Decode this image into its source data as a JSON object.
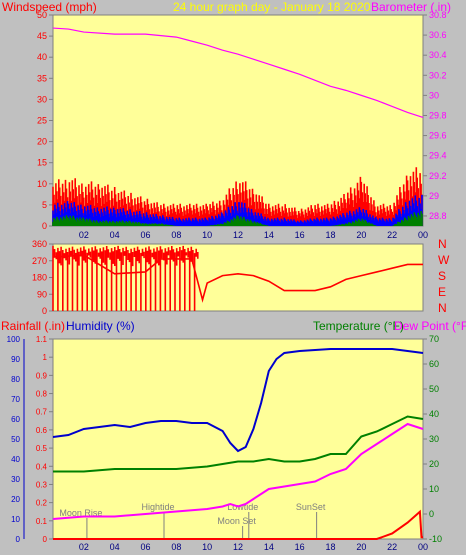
{
  "chart_data": [
    {
      "type": "line",
      "title": "24 hour graph day - January 18 2020",
      "left_axis_label": "Windspeed (mph)",
      "right_axis_label": "Barometer (.in)",
      "x_ticks": [
        "02",
        "04",
        "06",
        "08",
        "10",
        "12",
        "14",
        "16",
        "18",
        "20",
        "22",
        "00"
      ],
      "left_ticks": [
        "0",
        "5",
        "10",
        "15",
        "20",
        "25",
        "30",
        "35",
        "40",
        "45",
        "50"
      ],
      "left_ylim": [
        0,
        50
      ],
      "right_ticks": [
        "28.8",
        "29",
        "29.2",
        "29.4",
        "29.6",
        "29.8",
        "30",
        "30.2",
        "30.4",
        "30.6",
        "30.8"
      ],
      "right_ylim": [
        28.7,
        30.8
      ],
      "grid": false,
      "colors": {
        "gust": "#ff0000",
        "average": "#0000ff",
        "minimum": "#008000",
        "barometer": "#ff00ff",
        "left_axis_text": "#ff0000",
        "right_axis_text": "#ff00ff",
        "title_text": "#ffff00"
      },
      "series": [
        {
          "axis": "right",
          "color": "#ff00ff",
          "x": [
            0,
            1,
            2,
            4,
            6,
            8,
            9,
            10,
            11,
            12,
            13,
            14,
            15,
            16,
            17,
            18,
            19,
            20,
            21,
            22,
            23,
            24
          ],
          "values": [
            30.67,
            30.66,
            30.63,
            30.61,
            30.61,
            30.58,
            30.54,
            30.5,
            30.45,
            30.41,
            30.36,
            30.31,
            30.26,
            30.21,
            30.15,
            30.09,
            30.05,
            30.0,
            29.95,
            29.89,
            29.83,
            29.78
          ]
        },
        {
          "axis": "left",
          "color": "#ff0000",
          "x": [
            0,
            1,
            2,
            3,
            4,
            5,
            6,
            7,
            8,
            9,
            10,
            11,
            12,
            13,
            14,
            15,
            16,
            17,
            18,
            19,
            20,
            21,
            22,
            23,
            24
          ],
          "values": [
            8,
            9,
            8,
            8,
            7,
            6,
            5,
            4,
            4,
            4,
            4,
            5,
            9,
            7,
            4,
            4,
            3,
            4,
            4,
            6,
            9,
            4,
            4,
            10,
            11
          ]
        },
        {
          "axis": "left",
          "color": "#0000ff",
          "x": [
            0,
            1,
            2,
            3,
            4,
            5,
            6,
            7,
            8,
            9,
            10,
            11,
            12,
            13,
            14,
            15,
            16,
            17,
            18,
            19,
            20,
            21,
            22,
            23,
            24
          ],
          "values": [
            4,
            4.5,
            4,
            3.5,
            3.5,
            3,
            2.5,
            2,
            1.5,
            1.5,
            1.5,
            2.5,
            5,
            3,
            1.5,
            1.5,
            1,
            1.5,
            1.5,
            2.5,
            3.5,
            1.5,
            1.5,
            5,
            6
          ]
        },
        {
          "axis": "left",
          "color": "#008000",
          "x": [
            0,
            1,
            2,
            3,
            4,
            5,
            6,
            7,
            8,
            9,
            10,
            11,
            12,
            13,
            14,
            15,
            16,
            17,
            18,
            19,
            20,
            21,
            22,
            23,
            24
          ],
          "values": [
            1.5,
            2,
            1.5,
            1,
            1,
            1,
            0.5,
            0.5,
            0,
            0,
            0,
            0.5,
            2,
            1,
            0,
            0,
            0,
            0,
            0,
            0.5,
            1.5,
            0,
            0,
            2,
            3
          ]
        }
      ]
    },
    {
      "type": "line",
      "title": "",
      "right_ticks": [
        "N",
        "W",
        "S",
        "E",
        "N"
      ],
      "left_ticks": [
        "0",
        "90",
        "180",
        "270",
        "360"
      ],
      "ylim": [
        0,
        360
      ],
      "x_ticks": [],
      "colors": {
        "direction": "#ff0000",
        "label_text": "#ff0000"
      },
      "series": [
        {
          "color": "#ff0000",
          "x": [
            0,
            2,
            4,
            6,
            7,
            8,
            9,
            9.7,
            10,
            11,
            12,
            13,
            14,
            15,
            16,
            17,
            18,
            19,
            20,
            21,
            22,
            23,
            24
          ],
          "values": [
            290,
            300,
            200,
            210,
            280,
            280,
            280,
            60,
            150,
            190,
            200,
            190,
            160,
            110,
            110,
            110,
            130,
            170,
            190,
            210,
            230,
            250,
            250
          ]
        }
      ]
    },
    {
      "type": "line",
      "left_axis_label_1": "Rainfall (.in)",
      "left_axis_label_2": "Humidity (%)",
      "right_axis_label_1": "Temperature (°F)",
      "right_axis_label_2": "Dew Point (°F)",
      "x_ticks": [
        "02",
        "04",
        "06",
        "08",
        "10",
        "12",
        "14",
        "16",
        "18",
        "20",
        "22",
        "00"
      ],
      "humidity_ticks": [
        "0",
        "10",
        "20",
        "30",
        "40",
        "50",
        "60",
        "70",
        "80",
        "90",
        "100"
      ],
      "humidity_ylim": [
        0,
        100
      ],
      "rainfall_ticks": [
        "0",
        "0.1",
        "0.2",
        "0.3",
        "0.4",
        "0.5",
        "0.6",
        "0.7",
        "0.8",
        "0.9",
        "1",
        "1.1"
      ],
      "rainfall_ylim": [
        0,
        1.1
      ],
      "temperature_ticks": [
        "-10",
        "0",
        "10",
        "20",
        "30",
        "40",
        "50",
        "60",
        "70"
      ],
      "temperature_ylim": [
        -10,
        70
      ],
      "colors": {
        "humidity": "#0000cd",
        "temperature": "#008000",
        "dew_point": "#ff00ff",
        "rainfall": "#ff0000",
        "rainfall_axis": "#ff0000",
        "humidity_axis": "#0000cd",
        "temperature_axis": "#008000",
        "dew_point_axis": "#ff00ff",
        "events": "#808080"
      },
      "series": [
        {
          "axis": "humidity",
          "color": "#0000cd",
          "x": [
            0,
            1,
            2,
            3,
            4,
            5,
            6,
            7,
            8,
            9,
            10,
            11,
            11.5,
            12,
            12.5,
            13,
            13.5,
            14,
            14.5,
            15,
            16,
            18,
            20,
            22,
            23,
            24
          ],
          "values": [
            51,
            52,
            55,
            56,
            57,
            56,
            58,
            59,
            59,
            58,
            58,
            54,
            48,
            44,
            46,
            55,
            68,
            84,
            90,
            93,
            94,
            95,
            95,
            95,
            94,
            93
          ]
        },
        {
          "axis": "temperature",
          "color": "#008000",
          "x": [
            0,
            2,
            4,
            6,
            8,
            10,
            11,
            12,
            13,
            14,
            15,
            16,
            17,
            18,
            19,
            20,
            21,
            22,
            23,
            24
          ],
          "values": [
            17,
            17,
            18,
            18,
            18,
            19,
            20,
            21,
            21,
            22,
            21,
            21,
            22,
            24,
            24,
            31,
            33,
            36,
            39,
            38
          ]
        },
        {
          "axis": "temperature",
          "color": "#ff00ff",
          "x": [
            0,
            2,
            4,
            6,
            8,
            10,
            11,
            11.5,
            12,
            12.5,
            13,
            14,
            15,
            16,
            17,
            18,
            19,
            20,
            21,
            22,
            23,
            24
          ],
          "values": [
            -2,
            -1,
            -1,
            0,
            1,
            2,
            3,
            4,
            3,
            4,
            6,
            10,
            11,
            12,
            13,
            16,
            18,
            24,
            28,
            32,
            36,
            34
          ]
        },
        {
          "axis": "rainfall",
          "color": "#ff0000",
          "x": [
            0,
            21,
            22,
            23,
            23.8,
            23.9,
            24
          ],
          "values": [
            0,
            0,
            0.03,
            0.09,
            0.15,
            0.01,
            0.01
          ]
        }
      ],
      "events": [
        {
          "label": "Moon Rise",
          "x": 2.2
        },
        {
          "label": "Hightide",
          "x": 7.2
        },
        {
          "label": "Lowtide",
          "x": 12.7
        },
        {
          "label": "Moon Set",
          "x": 12.3
        },
        {
          "label": "SunSet",
          "x": 17.1
        }
      ]
    }
  ]
}
